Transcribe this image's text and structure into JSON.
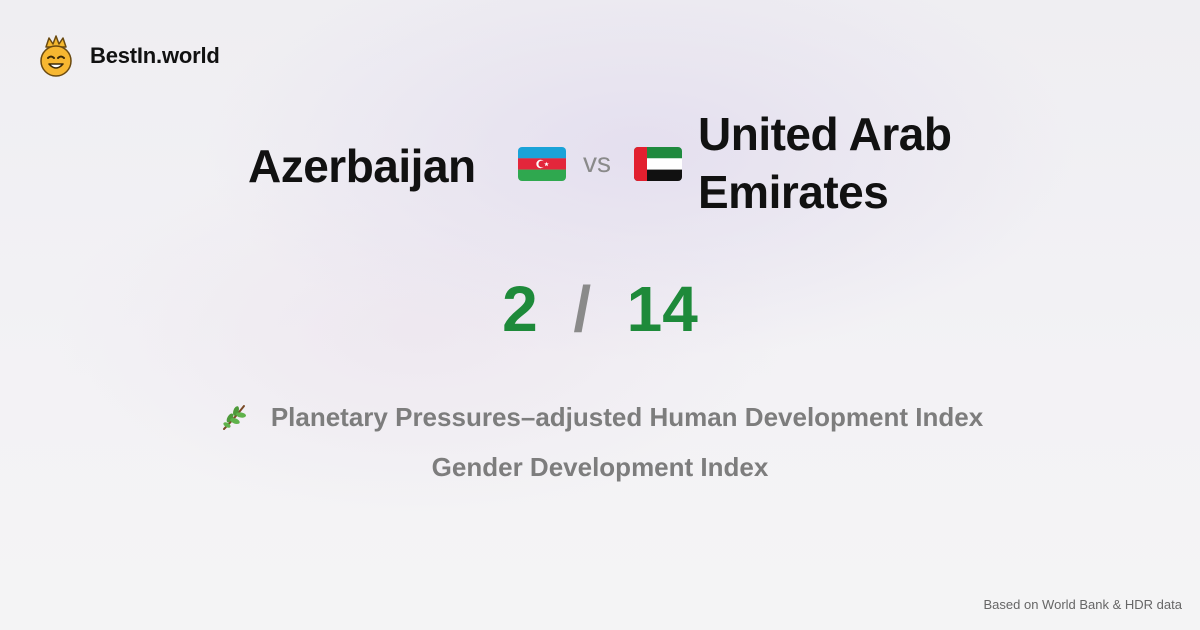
{
  "brand": {
    "name": "BestIn.world",
    "logo_icon": "smiling-crown-face-icon"
  },
  "comparison": {
    "country_a": "Azerbaijan",
    "country_a_flag": "azerbaijan-flag-icon",
    "vs_label": "vs",
    "country_b": "United Arab Emirates",
    "country_b_flag": "uae-flag-icon"
  },
  "score": {
    "left": "2",
    "separator": "/",
    "right": "14",
    "color": "#1e8a3a"
  },
  "metrics": [
    {
      "icon": "leaf-sprig-icon",
      "label": "Planetary Pressures–adjusted Human Development Index"
    },
    {
      "icon": "",
      "label": "Gender Development Index"
    }
  ],
  "footer": {
    "source": "Based on World Bank & HDR data"
  }
}
